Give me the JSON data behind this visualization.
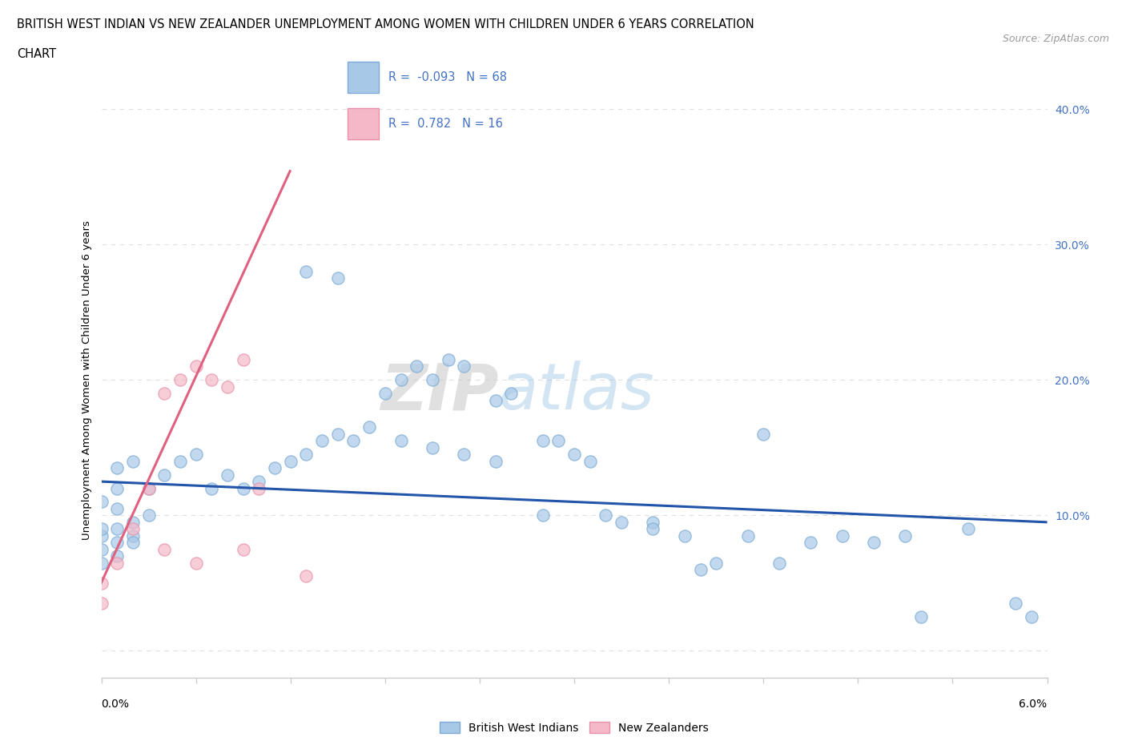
{
  "title_line1": "BRITISH WEST INDIAN VS NEW ZEALANDER UNEMPLOYMENT AMONG WOMEN WITH CHILDREN UNDER 6 YEARS CORRELATION",
  "title_line2": "CHART",
  "source": "Source: ZipAtlas.com",
  "ylabel": "Unemployment Among Women with Children Under 6 years",
  "xmin": 0.0,
  "xmax": 0.06,
  "ymin": -0.02,
  "ymax": 0.42,
  "blue_color": "#a8c8e8",
  "pink_color": "#f4b8c8",
  "blue_edge_color": "#7baad4",
  "pink_edge_color": "#e890a8",
  "blue_line_color": "#2255aa",
  "pink_line_color": "#e06080",
  "r_blue": -0.093,
  "n_blue": 68,
  "r_pink": 0.782,
  "n_pink": 16,
  "watermark_zip": "ZIP",
  "watermark_atlas": "atlas",
  "legend_label_blue": "British West Indians",
  "legend_label_pink": "New Zealanders",
  "blue_points_x": [
    0.001,
    0.0,
    0.002,
    0.0,
    0.001,
    0.0,
    0.001,
    0.0,
    0.002,
    0.001,
    0.003,
    0.002,
    0.001,
    0.0,
    0.001,
    0.002,
    0.003,
    0.004,
    0.005,
    0.006,
    0.007,
    0.008,
    0.009,
    0.01,
    0.011,
    0.012,
    0.013,
    0.014,
    0.015,
    0.016,
    0.018,
    0.019,
    0.02,
    0.021,
    0.022,
    0.023,
    0.025,
    0.026,
    0.028,
    0.029,
    0.03,
    0.031,
    0.033,
    0.035,
    0.037,
    0.039,
    0.041,
    0.043,
    0.045,
    0.047,
    0.049,
    0.051,
    0.042,
    0.013,
    0.015,
    0.017,
    0.019,
    0.021,
    0.023,
    0.025,
    0.028,
    0.032,
    0.035,
    0.038,
    0.052,
    0.055,
    0.058,
    0.059
  ],
  "blue_points_y": [
    0.105,
    0.11,
    0.095,
    0.085,
    0.07,
    0.09,
    0.08,
    0.075,
    0.085,
    0.12,
    0.1,
    0.08,
    0.09,
    0.065,
    0.135,
    0.14,
    0.12,
    0.13,
    0.14,
    0.145,
    0.12,
    0.13,
    0.12,
    0.125,
    0.135,
    0.14,
    0.145,
    0.155,
    0.16,
    0.155,
    0.19,
    0.2,
    0.21,
    0.2,
    0.215,
    0.21,
    0.185,
    0.19,
    0.155,
    0.155,
    0.145,
    0.14,
    0.095,
    0.095,
    0.085,
    0.065,
    0.085,
    0.065,
    0.08,
    0.085,
    0.08,
    0.085,
    0.16,
    0.28,
    0.275,
    0.165,
    0.155,
    0.15,
    0.145,
    0.14,
    0.1,
    0.1,
    0.09,
    0.06,
    0.025,
    0.09,
    0.035,
    0.025
  ],
  "pink_points_x": [
    0.0,
    0.0,
    0.001,
    0.002,
    0.003,
    0.004,
    0.004,
    0.005,
    0.006,
    0.006,
    0.007,
    0.008,
    0.009,
    0.009,
    0.01,
    0.013
  ],
  "pink_points_y": [
    0.05,
    0.035,
    0.065,
    0.09,
    0.12,
    0.19,
    0.075,
    0.2,
    0.21,
    0.065,
    0.2,
    0.195,
    0.215,
    0.075,
    0.12,
    0.055
  ],
  "blue_trend_x": [
    0.0,
    0.06
  ],
  "blue_trend_y": [
    0.125,
    0.095
  ],
  "pink_trend_x": [
    -0.001,
    0.012
  ],
  "pink_trend_y": [
    0.025,
    0.355
  ]
}
